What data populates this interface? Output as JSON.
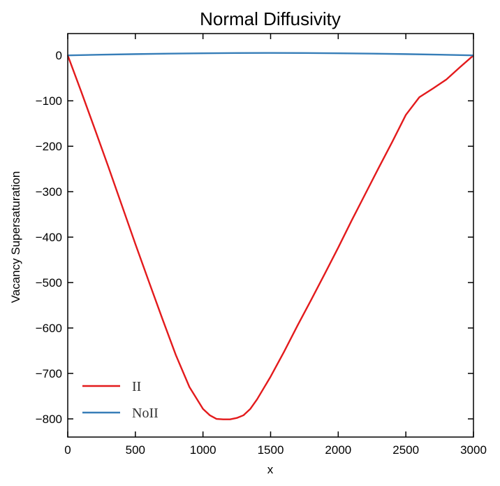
{
  "chart_data": {
    "type": "line",
    "title": "Normal Diffusivity",
    "xlabel": "x",
    "ylabel": "Vacancy Supersaturation",
    "xlim": [
      0,
      3000
    ],
    "ylim": [
      -840,
      48
    ],
    "x_ticks": [
      0,
      500,
      1000,
      1500,
      2000,
      2500,
      3000
    ],
    "y_ticks": [
      0,
      -100,
      -200,
      -300,
      -400,
      -500,
      -600,
      -700,
      -800
    ],
    "grid": false,
    "legend_position": "lower-left",
    "series": [
      {
        "name": "II",
        "color": "#e31a1c",
        "x": [
          0,
          100,
          200,
          300,
          400,
          500,
          600,
          700,
          800,
          900,
          1000,
          1050,
          1100,
          1150,
          1200,
          1250,
          1300,
          1350,
          1400,
          1500,
          1600,
          1700,
          1800,
          1900,
          2000,
          2100,
          2200,
          2300,
          2400,
          2500,
          2600,
          2700,
          2800,
          2900,
          3000
        ],
        "y": [
          0,
          -80,
          -162,
          -245,
          -330,
          -415,
          -498,
          -580,
          -660,
          -730,
          -778,
          -792,
          -800,
          -801,
          -801,
          -798,
          -792,
          -778,
          -757,
          -707,
          -652,
          -594,
          -538,
          -481,
          -423,
          -363,
          -305,
          -247,
          -190,
          -131,
          -92,
          -73,
          -53,
          -26,
          0
        ]
      },
      {
        "name": "NoII",
        "color": "#377eb8",
        "x": [
          0,
          250,
          500,
          750,
          1000,
          1250,
          1500,
          1750,
          2000,
          2250,
          2500,
          2750,
          3000
        ],
        "y": [
          0,
          1.5,
          2.8,
          3.9,
          4.7,
          5.2,
          5.4,
          5.2,
          4.7,
          3.9,
          2.8,
          1.5,
          0
        ]
      }
    ]
  }
}
